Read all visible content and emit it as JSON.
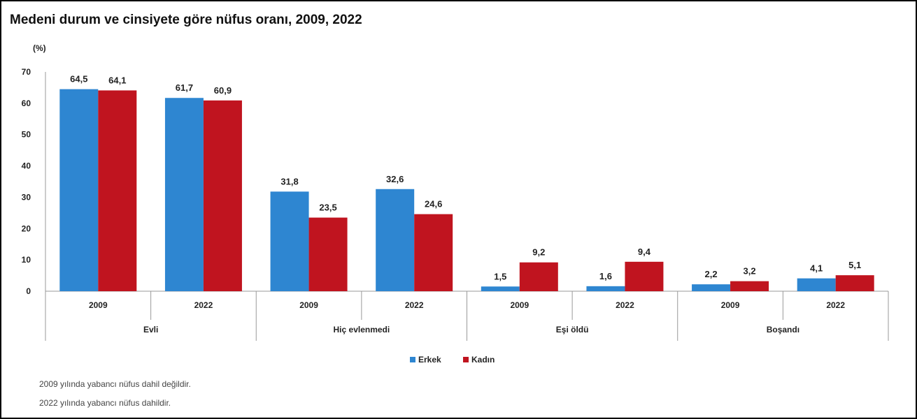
{
  "chart_data": {
    "type": "bar",
    "title": "Medeni durum ve cinsiyete göre nüfus oranı, 2009, 2022",
    "unit_label": "(%)",
    "ylim": [
      0,
      70
    ],
    "yticks": [
      0,
      10,
      20,
      30,
      40,
      50,
      60,
      70
    ],
    "groups": [
      {
        "name": "Evli",
        "categories": [
          "2009",
          "2022"
        ]
      },
      {
        "name": "Hiç evlenmedi",
        "categories": [
          "2009",
          "2022"
        ]
      },
      {
        "name": "Eşi öldü",
        "categories": [
          "2009",
          "2022"
        ]
      },
      {
        "name": "Boşandı",
        "categories": [
          "2009",
          "2022"
        ]
      }
    ],
    "series": [
      {
        "name": "Erkek",
        "color": "#2e86d1",
        "values": [
          64.5,
          61.7,
          31.8,
          32.6,
          1.5,
          1.6,
          2.2,
          4.1
        ],
        "labels": [
          "64,5",
          "61,7",
          "31,8",
          "32,6",
          "1,5",
          "1,6",
          "2,2",
          "4,1"
        ]
      },
      {
        "name": "Kadın",
        "color": "#c0141f",
        "values": [
          64.1,
          60.9,
          23.5,
          24.6,
          9.2,
          9.4,
          3.2,
          5.1
        ],
        "labels": [
          "64,1",
          "60,9",
          "23,5",
          "24,6",
          "9,2",
          "9,4",
          "3,2",
          "5,1"
        ]
      }
    ],
    "legend_position": "bottom-center",
    "grid": false
  },
  "notes": [
    "2009 yılında yabancı nüfus dahil değildir.",
    "2022 yılında yabancı nüfus dahildir."
  ]
}
